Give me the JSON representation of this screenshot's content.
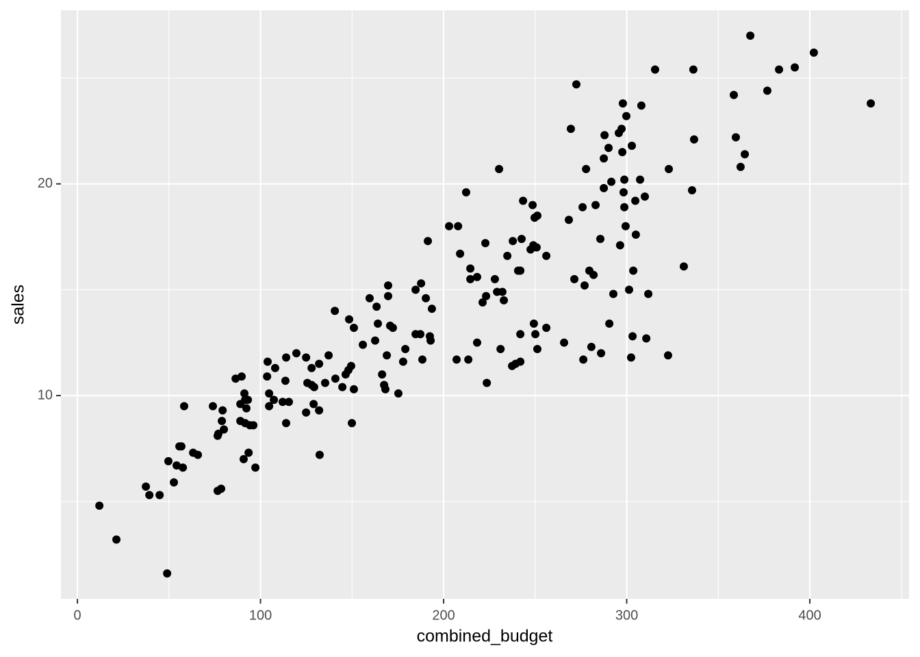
{
  "chart_data": {
    "type": "scatter",
    "xlabel": "combined_budget",
    "ylabel": "sales",
    "color": "#000000",
    "xlim": [
      -9,
      454.2
    ],
    "ylim": [
      0.4,
      28.2
    ],
    "xticks": [
      0,
      100,
      200,
      300,
      400
    ],
    "yticks": [
      10,
      20
    ],
    "xminor": [
      50,
      150,
      250,
      350,
      450
    ],
    "yminor": [
      5,
      15,
      25
    ],
    "grid": true,
    "x": [
      12.0,
      21.3,
      49.0,
      37.4,
      39.3,
      44.9,
      49.7,
      52.7,
      54.2,
      55.7,
      56.8,
      57.6,
      58.3,
      63.2,
      65.8,
      74.0,
      76.6,
      77.0,
      76.6,
      78.5,
      78.9,
      79.3,
      80.0,
      86.4,
      89.7,
      89.0,
      89.0,
      91.2,
      90.8,
      91.6,
      92.3,
      93.1,
      91.6,
      93.5,
      94.2,
      96.1,
      97.2,
      103.6,
      103.9,
      104.7,
      104.7,
      107.3,
      108.0,
      112.1,
      114.0,
      113.6,
      114.0,
      115.5,
      119.6,
      124.9,
      124.9,
      125.6,
      127.9,
      127.9,
      129.3,
      129.0,
      132.0,
      132.0,
      132.3,
      135.3,
      137.2,
      140.6,
      140.9,
      144.7,
      146.5,
      148.0,
      149.5,
      148.4,
      151.0,
      151.0,
      149.9,
      155.9,
      159.6,
      162.6,
      163.4,
      164.1,
      166.4,
      167.5,
      168.2,
      169.0,
      169.7,
      169.7,
      170.8,
      172.3,
      175.3,
      177.9,
      179.1,
      184.7,
      184.7,
      187.3,
      187.7,
      188.4,
      190.3,
      191.4,
      192.5,
      192.9,
      193.6,
      203.0,
      207.9,
      209.0,
      207.1,
      212.3,
      213.5,
      214.6,
      214.6,
      218.3,
      218.3,
      221.3,
      222.8,
      223.2,
      223.6,
      228.0,
      229.2,
      230.3,
      231.1,
      232.1,
      232.9,
      234.8,
      237.8,
      237.4,
      239.3,
      240.7,
      241.9,
      241.9,
      241.9,
      242.6,
      243.4,
      247.5,
      248.6,
      249.0,
      249.3,
      249.7,
      250.1,
      251.2,
      250.8,
      251.2,
      256.1,
      256.1,
      265.8,
      268.4,
      269.5,
      271.4,
      272.5,
      275.9,
      276.3,
      277.0,
      277.8,
      279.6,
      280.7,
      281.9,
      283.0,
      285.6,
      286.0,
      287.5,
      287.9,
      287.5,
      290.1,
      290.5,
      291.6,
      292.7,
      295.7,
      296.4,
      297.2,
      297.6,
      297.9,
      298.3,
      298.7,
      298.7,
      299.4,
      299.8,
      301.3,
      302.4,
      302.8,
      303.2,
      303.6,
      304.7,
      305.0,
      307.3,
      308.0,
      309.9,
      310.7,
      311.8,
      315.5,
      322.6,
      323.0,
      331.2,
      335.7,
      336.4,
      336.8,
      358.5,
      359.6,
      362.2,
      364.5,
      367.5,
      376.8,
      383.2,
      391.8,
      402.2,
      433.3
    ],
    "values": [
      4.8,
      3.2,
      1.6,
      5.7,
      5.3,
      5.3,
      6.9,
      5.9,
      6.7,
      7.6,
      7.6,
      6.6,
      9.5,
      7.3,
      7.2,
      9.5,
      8.1,
      8.2,
      5.5,
      5.6,
      8.8,
      9.3,
      8.4,
      10.8,
      10.9,
      9.6,
      8.8,
      10.1,
      7.0,
      9.8,
      9.4,
      9.8,
      8.7,
      7.3,
      8.6,
      8.6,
      6.6,
      10.9,
      11.6,
      10.1,
      9.5,
      9.8,
      11.3,
      9.7,
      11.8,
      10.7,
      8.7,
      9.7,
      12.0,
      11.8,
      9.2,
      10.6,
      11.3,
      10.5,
      10.4,
      9.6,
      11.5,
      9.3,
      7.2,
      10.6,
      11.9,
      14.0,
      10.8,
      10.4,
      11.0,
      11.2,
      11.4,
      13.6,
      13.2,
      10.3,
      8.7,
      12.4,
      14.6,
      12.6,
      14.2,
      13.4,
      11.0,
      10.5,
      10.3,
      11.9,
      15.2,
      14.7,
      13.3,
      13.2,
      10.1,
      11.6,
      12.2,
      15.0,
      12.9,
      12.9,
      15.3,
      11.7,
      14.6,
      17.3,
      12.8,
      12.6,
      14.1,
      18.0,
      18.0,
      16.7,
      11.7,
      19.6,
      11.7,
      16.0,
      15.5,
      15.6,
      12.5,
      14.4,
      17.2,
      14.7,
      10.6,
      15.5,
      14.9,
      20.7,
      12.2,
      14.9,
      14.5,
      16.6,
      17.3,
      11.4,
      11.5,
      15.9,
      15.9,
      11.6,
      12.9,
      17.4,
      19.2,
      16.9,
      19.0,
      17.1,
      13.4,
      18.4,
      12.9,
      18.5,
      17.0,
      12.2,
      16.6,
      13.2,
      12.5,
      18.3,
      22.6,
      15.5,
      24.7,
      18.9,
      11.7,
      15.2,
      20.7,
      15.9,
      12.3,
      15.7,
      19.0,
      17.4,
      12.0,
      21.2,
      22.3,
      19.8,
      21.7,
      13.4,
      20.1,
      14.8,
      22.4,
      17.1,
      22.6,
      21.5,
      23.8,
      19.6,
      20.2,
      18.9,
      18.0,
      23.2,
      15.0,
      11.8,
      21.8,
      12.8,
      15.9,
      19.2,
      17.6,
      20.2,
      23.7,
      19.4,
      12.7,
      14.8,
      25.4,
      11.9,
      20.7,
      16.1,
      19.7,
      25.4,
      22.1,
      24.2,
      22.2,
      20.8,
      21.4,
      27.0,
      24.4,
      25.4,
      25.5,
      26.2,
      23.8
    ]
  }
}
